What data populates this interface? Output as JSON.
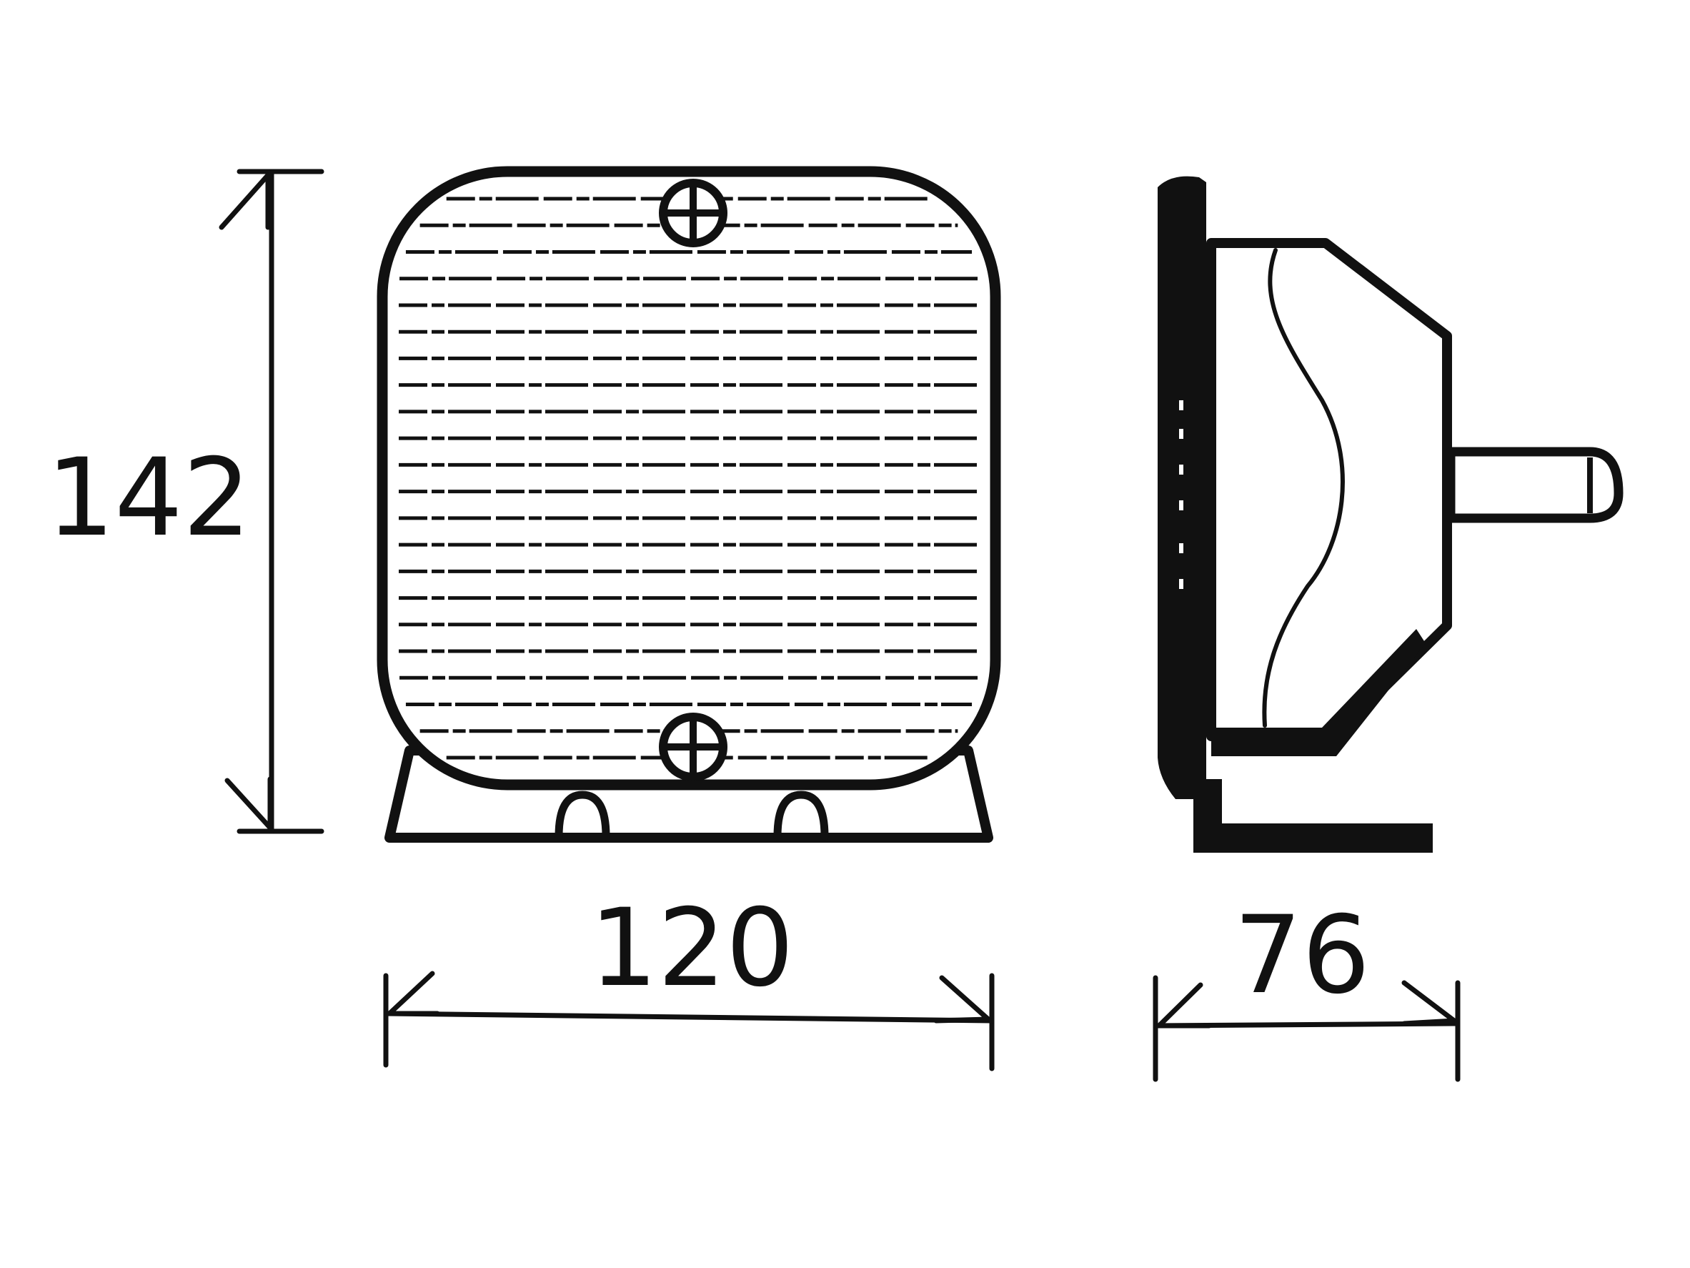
{
  "dimensions": {
    "height_label": "142",
    "width_label": "120",
    "depth_label": "76"
  },
  "colors": {
    "ink": "#111111",
    "background": "#ffffff"
  },
  "lens": {
    "rib_count": 22
  }
}
